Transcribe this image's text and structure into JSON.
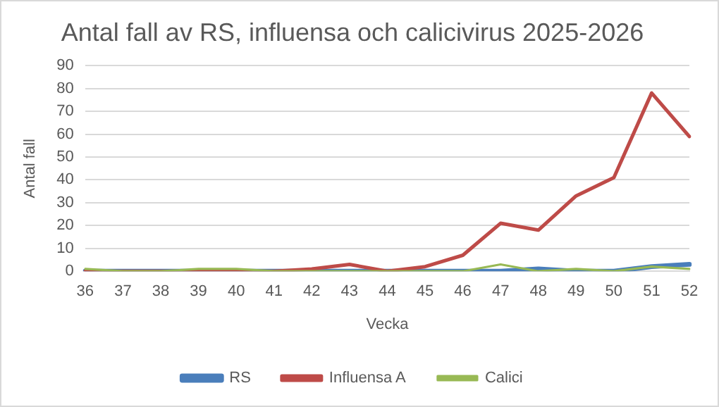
{
  "chart_data": {
    "type": "line",
    "title": "Antal fall av RS, influensa och calicivirus 2025-2026",
    "xlabel": "Vecka",
    "ylabel": "Antal fall",
    "categories": [
      "36",
      "37",
      "38",
      "39",
      "40",
      "41",
      "42",
      "43",
      "44",
      "45",
      "46",
      "47",
      "48",
      "49",
      "50",
      "51",
      "52"
    ],
    "series": [
      {
        "name": "RS",
        "color": "#4a7ebb",
        "values": [
          0,
          0,
          0,
          0,
          0,
          0,
          0,
          0,
          0,
          0,
          0,
          0,
          1,
          0,
          0,
          2,
          3
        ]
      },
      {
        "name": "Influensa A",
        "color": "#be4b48",
        "values": [
          0,
          0,
          0,
          0,
          0,
          0,
          1,
          3,
          0,
          2,
          7,
          21,
          18,
          33,
          41,
          78,
          59
        ]
      },
      {
        "name": "Calici",
        "color": "#98b954",
        "values": [
          1,
          0,
          0,
          1,
          1,
          0,
          0,
          0,
          0,
          0,
          0,
          3,
          0,
          1,
          0,
          2,
          1
        ]
      }
    ],
    "ylim": [
      0,
      90
    ],
    "yticks": [
      0,
      10,
      20,
      30,
      40,
      50,
      60,
      70,
      80,
      90
    ],
    "grid": "y",
    "legend": "bottom",
    "marker": "none",
    "line_style": "solid"
  }
}
